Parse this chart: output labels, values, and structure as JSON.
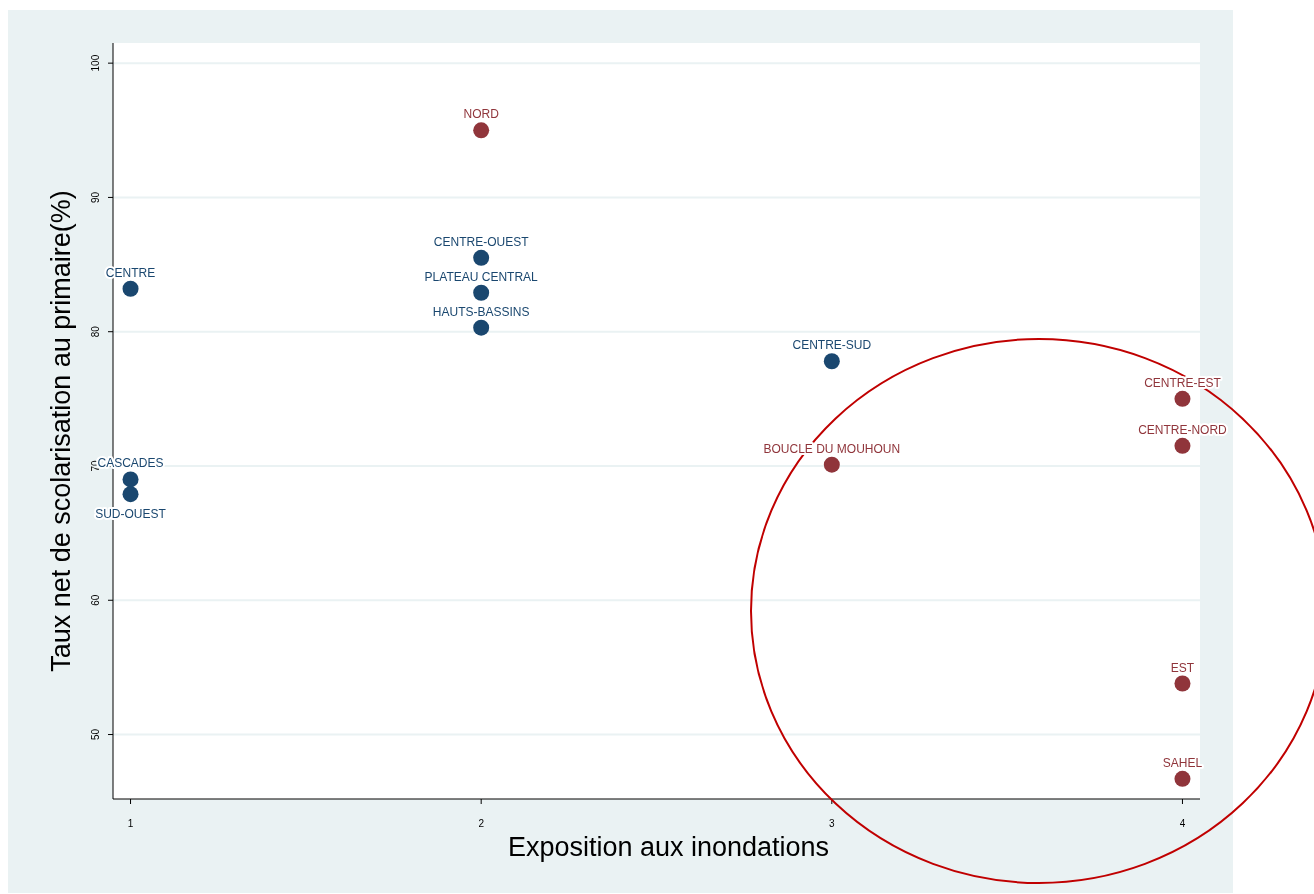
{
  "chart_data": {
    "type": "scatter",
    "xlabel": "Exposition aux inondations",
    "ylabel": "Taux net de scolarisation au primaire(%)",
    "xlim": [
      0.95,
      4.05
    ],
    "xticks": [
      1,
      2,
      3,
      4
    ],
    "ylim": [
      45.2,
      101.5
    ],
    "yticks": [
      50,
      60,
      70,
      80,
      90,
      100
    ],
    "grid": "y",
    "marker": "circle",
    "series": [
      {
        "color": "#1a476f",
        "x": [
          1,
          1,
          1,
          2,
          2,
          2,
          3
        ],
        "values": [
          83.2,
          69.0,
          67.9,
          85.5,
          82.9,
          80.3,
          77.8
        ]
      },
      {
        "color": "#90353b",
        "x": [
          2,
          3,
          4,
          4,
          4,
          4
        ],
        "values": [
          95.0,
          70.1,
          75.0,
          71.5,
          53.8,
          46.7
        ]
      }
    ],
    "annotations": [
      {
        "text": "CENTRE",
        "x": 1,
        "y": 83.2
      },
      {
        "text": "CASCADES",
        "x": 1,
        "y": 69.0
      },
      {
        "text": "SUD-OUEST",
        "x": 1,
        "y": 67.9
      },
      {
        "text": "CENTRE-OUEST",
        "x": 2,
        "y": 85.5
      },
      {
        "text": "PLATEAU CENTRAL",
        "x": 2,
        "y": 82.9
      },
      {
        "text": "HAUTS-BASSINS",
        "x": 2,
        "y": 80.3
      },
      {
        "text": "CENTRE-SUD",
        "x": 3,
        "y": 77.8
      },
      {
        "text": "NORD",
        "x": 2,
        "y": 95.0
      },
      {
        "text": "BOUCLE DU MOUHOUN",
        "x": 3,
        "y": 70.1
      },
      {
        "text": "CENTRE-EST",
        "x": 4,
        "y": 75.0
      },
      {
        "text": "CENTRE-NORD",
        "x": 4,
        "y": 71.5
      },
      {
        "text": "EST",
        "x": 4,
        "y": 53.8
      },
      {
        "text": "SAHEL",
        "x": 4,
        "y": 46.7
      }
    ]
  }
}
